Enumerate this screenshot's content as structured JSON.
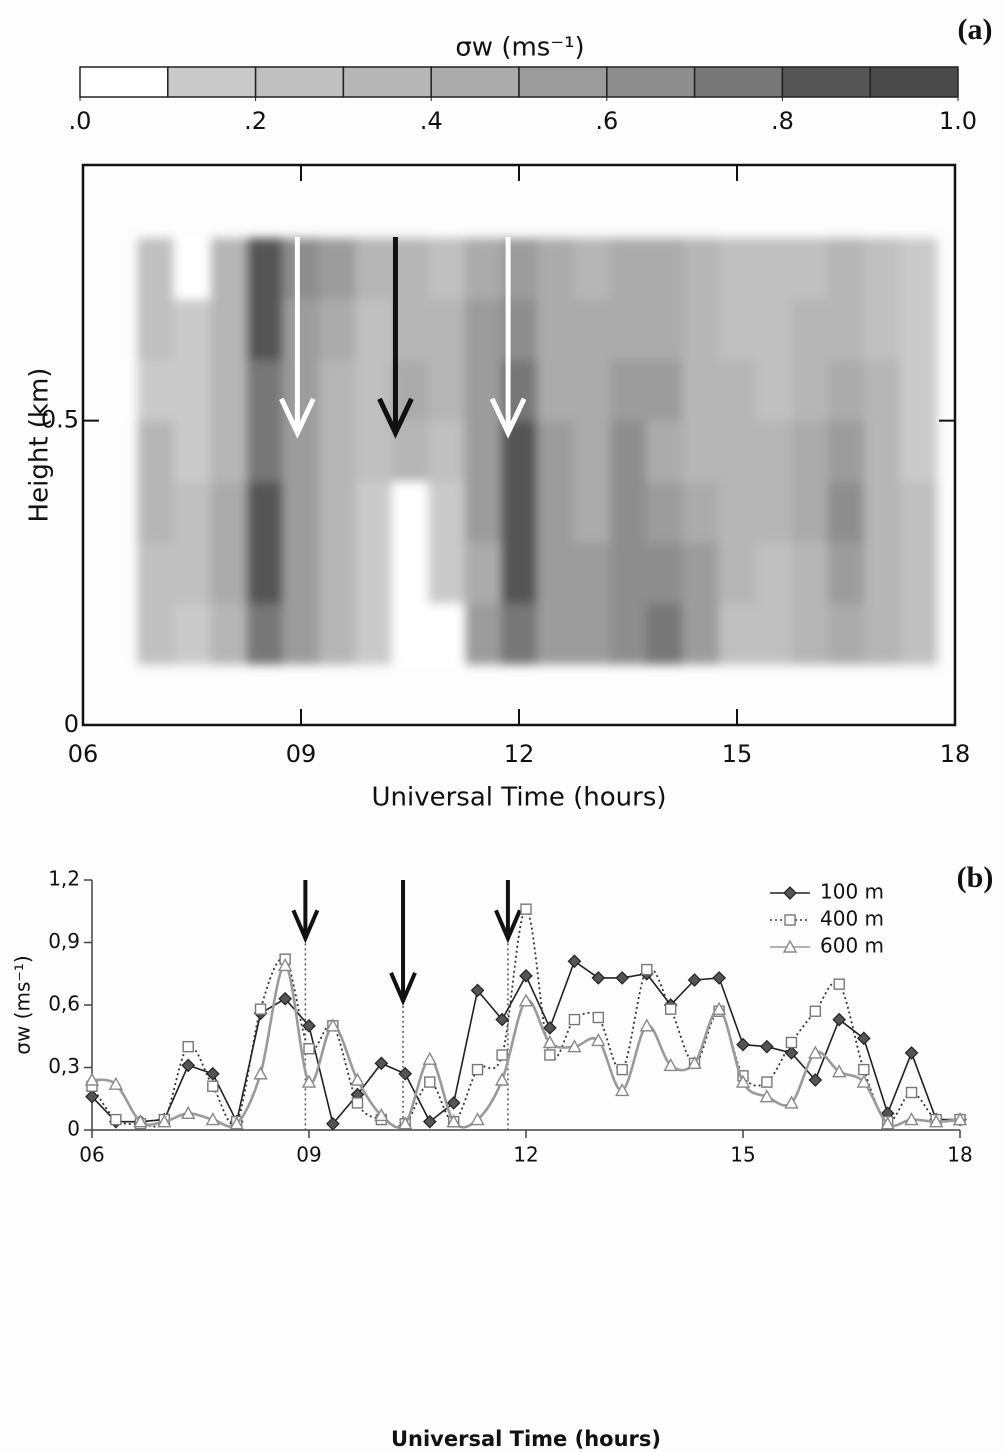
{
  "chart_data": [
    {
      "type": "contour",
      "panel": "(a)",
      "colorbar_title": "σw  (ms⁻¹)",
      "clim": [
        0,
        1
      ],
      "colors": [
        "#ffffff",
        "#cacaca",
        "#c0c0c0",
        "#b6b6b6",
        "#ababab",
        "#9c9c9c",
        "#8e8e8e",
        "#777777",
        "#555555",
        "#4a4a4a"
      ],
      "cticks": [
        {
          "value": 0,
          "label": ".0"
        },
        {
          "value": 0.2,
          "label": ".2"
        },
        {
          "value": 0.4,
          "label": ".4"
        },
        {
          "value": 0.6,
          "label": ".6"
        },
        {
          "value": 0.8,
          "label": ".8"
        },
        {
          "value": 1,
          "label": "1.0"
        }
      ],
      "x_label": "Universal Time (hours)",
      "y_label": "Height (km)",
      "xlim": [
        6,
        18
      ],
      "ylim": [
        0,
        0.92
      ],
      "xticks": [
        {
          "value": 6,
          "label": "06"
        },
        {
          "value": 9,
          "label": "09"
        },
        12,
        15,
        18
      ],
      "yticks": [
        0,
        0.5
      ],
      "x": [
        7,
        7.5,
        8,
        8.5,
        9,
        9.5,
        10,
        10.5,
        11,
        11.5,
        12,
        12.5,
        13,
        13.5,
        14,
        14.5,
        15,
        15.5,
        16,
        16.5,
        17,
        17.5
      ],
      "y": [
        0.15,
        0.25,
        0.35,
        0.45,
        0.55,
        0.65,
        0.75
      ],
      "z": [
        [
          0.2,
          0.15,
          0.3,
          0.7,
          0.5,
          0.3,
          0.15,
          0.05,
          0.05,
          0.5,
          0.75,
          0.55,
          0.55,
          0.65,
          0.7,
          0.55,
          0.25,
          0.2,
          0.3,
          0.4,
          0.3,
          0.2
        ],
        [
          0.25,
          0.2,
          0.4,
          0.85,
          0.5,
          0.3,
          0.15,
          0.05,
          0.1,
          0.45,
          0.85,
          0.55,
          0.5,
          0.6,
          0.6,
          0.5,
          0.3,
          0.25,
          0.35,
          0.5,
          0.35,
          0.2
        ],
        [
          0.35,
          0.2,
          0.4,
          0.8,
          0.55,
          0.35,
          0.15,
          0.05,
          0.15,
          0.5,
          0.85,
          0.55,
          0.45,
          0.6,
          0.5,
          0.4,
          0.35,
          0.3,
          0.45,
          0.6,
          0.35,
          0.2
        ],
        [
          0.3,
          0.15,
          0.35,
          0.75,
          0.55,
          0.35,
          0.2,
          0.3,
          0.25,
          0.55,
          0.8,
          0.5,
          0.4,
          0.6,
          0.45,
          0.35,
          0.35,
          0.3,
          0.4,
          0.55,
          0.3,
          0.15
        ],
        [
          0.15,
          0.1,
          0.3,
          0.75,
          0.5,
          0.35,
          0.25,
          0.4,
          0.35,
          0.55,
          0.7,
          0.45,
          0.4,
          0.55,
          0.5,
          0.35,
          0.3,
          0.25,
          0.35,
          0.45,
          0.3,
          0.15
        ],
        [
          0.2,
          0.1,
          0.3,
          0.8,
          0.55,
          0.45,
          0.25,
          0.35,
          0.3,
          0.5,
          0.65,
          0.45,
          0.4,
          0.45,
          0.45,
          0.35,
          0.25,
          0.25,
          0.3,
          0.35,
          0.25,
          0.15
        ],
        [
          0.2,
          0.05,
          0.3,
          0.85,
          0.6,
          0.55,
          0.3,
          0.3,
          0.25,
          0.45,
          0.55,
          0.4,
          0.35,
          0.4,
          0.4,
          0.35,
          0.25,
          0.2,
          0.25,
          0.3,
          0.25,
          0.15
        ]
      ],
      "arrows": [
        {
          "x": 8.95,
          "y": 0.48,
          "color": "#ffffff"
        },
        {
          "x": 10.3,
          "y": 0.48,
          "color": "#111111"
        },
        {
          "x": 11.85,
          "y": 0.48,
          "color": "#ffffff"
        }
      ]
    },
    {
      "type": "line",
      "panel": "(b)",
      "x_label": "Universal Time (hours)",
      "y_label": "σw (ms⁻¹)",
      "xlim": [
        6,
        18
      ],
      "ylim": [
        0,
        1.2
      ],
      "xticks": [
        {
          "value": 6,
          "label": "06"
        },
        {
          "value": 9,
          "label": "09"
        },
        12,
        15,
        18
      ],
      "yticks": [
        0,
        {
          "value": 0.3,
          "label": "0,3"
        },
        {
          "value": 0.6,
          "label": "0,6"
        },
        {
          "value": 0.9,
          "label": "0,9"
        },
        {
          "value": 1.2,
          "label": "1,2"
        }
      ],
      "legend": "upper right",
      "markers": [
        {
          "x": 8.95,
          "y": 0.92
        },
        {
          "x": 10.3,
          "y": 0.62
        },
        {
          "x": 11.75,
          "y": 0.92
        }
      ],
      "x": [
        6,
        6.33,
        6.67,
        7,
        7.33,
        7.67,
        8,
        8.33,
        8.67,
        9,
        9.33,
        9.67,
        10,
        10.33,
        10.67,
        11,
        11.33,
        11.67,
        12,
        12.33,
        12.67,
        13,
        13.33,
        13.67,
        14,
        14.33,
        14.67,
        15,
        15.33,
        15.67,
        16,
        16.33,
        16.67,
        17,
        17.33,
        17.67,
        18
      ],
      "series": [
        {
          "name": "100 m",
          "color": "#222222",
          "marker": "diamond",
          "dash": "solid",
          "values": [
            0.16,
            0.04,
            0.04,
            0.05,
            0.31,
            0.27,
            0.04,
            0.56,
            0.63,
            0.5,
            0.03,
            0.17,
            0.32,
            0.27,
            0.04,
            0.13,
            0.67,
            0.53,
            0.74,
            0.49,
            0.81,
            0.73,
            0.73,
            0.75,
            0.6,
            0.72,
            0.73,
            0.41,
            0.4,
            0.37,
            0.24,
            0.53,
            0.44,
            0.08,
            0.37,
            0.05,
            0.05
          ]
        },
        {
          "name": "400 m",
          "color": "#333333",
          "marker": "square",
          "dash": "dotted",
          "values": [
            0.21,
            0.05,
            0.03,
            0.05,
            0.4,
            0.21,
            0.04,
            0.58,
            0.82,
            0.39,
            0.5,
            0.13,
            0.05,
            0.03,
            0.23,
            0.04,
            0.29,
            0.36,
            1.06,
            0.36,
            0.53,
            0.54,
            0.29,
            0.77,
            0.58,
            0.32,
            0.57,
            0.26,
            0.23,
            0.42,
            0.57,
            0.7,
            0.29,
            0.04,
            0.18,
            0.05,
            0.05
          ]
        },
        {
          "name": "600 m",
          "color": "#9a9a9a",
          "marker": "triangle",
          "dash": "solid",
          "values": [
            0.24,
            0.22,
            0.04,
            0.04,
            0.08,
            0.05,
            0.03,
            0.27,
            0.79,
            0.23,
            0.5,
            0.24,
            0.07,
            0.03,
            0.34,
            0.04,
            0.05,
            0.24,
            0.62,
            0.42,
            0.4,
            0.43,
            0.19,
            0.5,
            0.31,
            0.32,
            0.58,
            0.23,
            0.16,
            0.13,
            0.37,
            0.28,
            0.23,
            0.03,
            0.05,
            0.04,
            0.05
          ]
        }
      ]
    }
  ]
}
